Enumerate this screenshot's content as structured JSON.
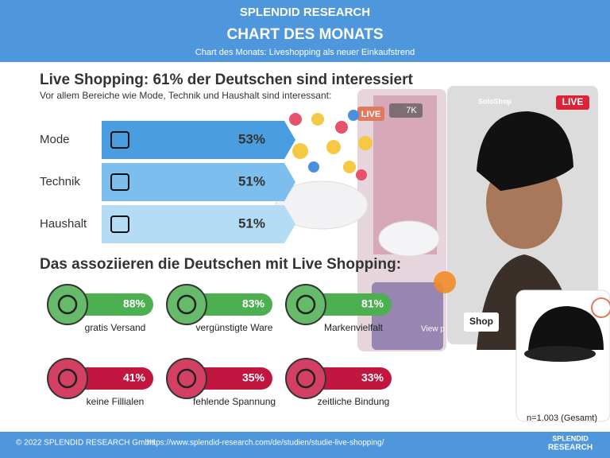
{
  "header": {
    "brand": "SPLENDID RESEARCH",
    "title": "CHART DES MONATS",
    "subtitle": "Chart des Monats: Liveshopping als neuer Einkaufstrend"
  },
  "section1": {
    "title": "Live Shopping: 61% der Deutschen sind interessiert",
    "subtitle": "Vor allem Bereiche wie Mode, Technik und Haushalt sind interessant:",
    "items": [
      {
        "label": "Mode",
        "value": "53%"
      },
      {
        "label": "Technik",
        "value": "51%"
      },
      {
        "label": "Haushalt",
        "value": "51%"
      }
    ]
  },
  "section2": {
    "title": "Das assoziieren die Deutschen mit Live Shopping:",
    "items": [
      {
        "value": "88%",
        "label": "gratis Versand"
      },
      {
        "value": "83%",
        "label": "vergünstigte Ware"
      },
      {
        "value": "81%",
        "label": "Markenvielfalt"
      },
      {
        "value": "41%",
        "label": "keine Fillialen"
      },
      {
        "value": "35%",
        "label": "fehlende Spannung"
      },
      {
        "value": "33%",
        "label": "zeitliche Bindung"
      }
    ]
  },
  "image_texts": {
    "live_left": "LIVE",
    "viewers": "7K",
    "shop_name": "SoloShop",
    "live_right": "LIVE",
    "button": "Shop",
    "view": "View p"
  },
  "note": "n=1.003 (Gesamt)",
  "footer": {
    "copyright": "© 2022 SPLENDID RESEARCH GmbH",
    "url": "https://www.splendid-research.com/de/studien/studie-live-shopping/",
    "logo_top": "SPLENDID",
    "logo_bottom": "RESEARCH"
  }
}
